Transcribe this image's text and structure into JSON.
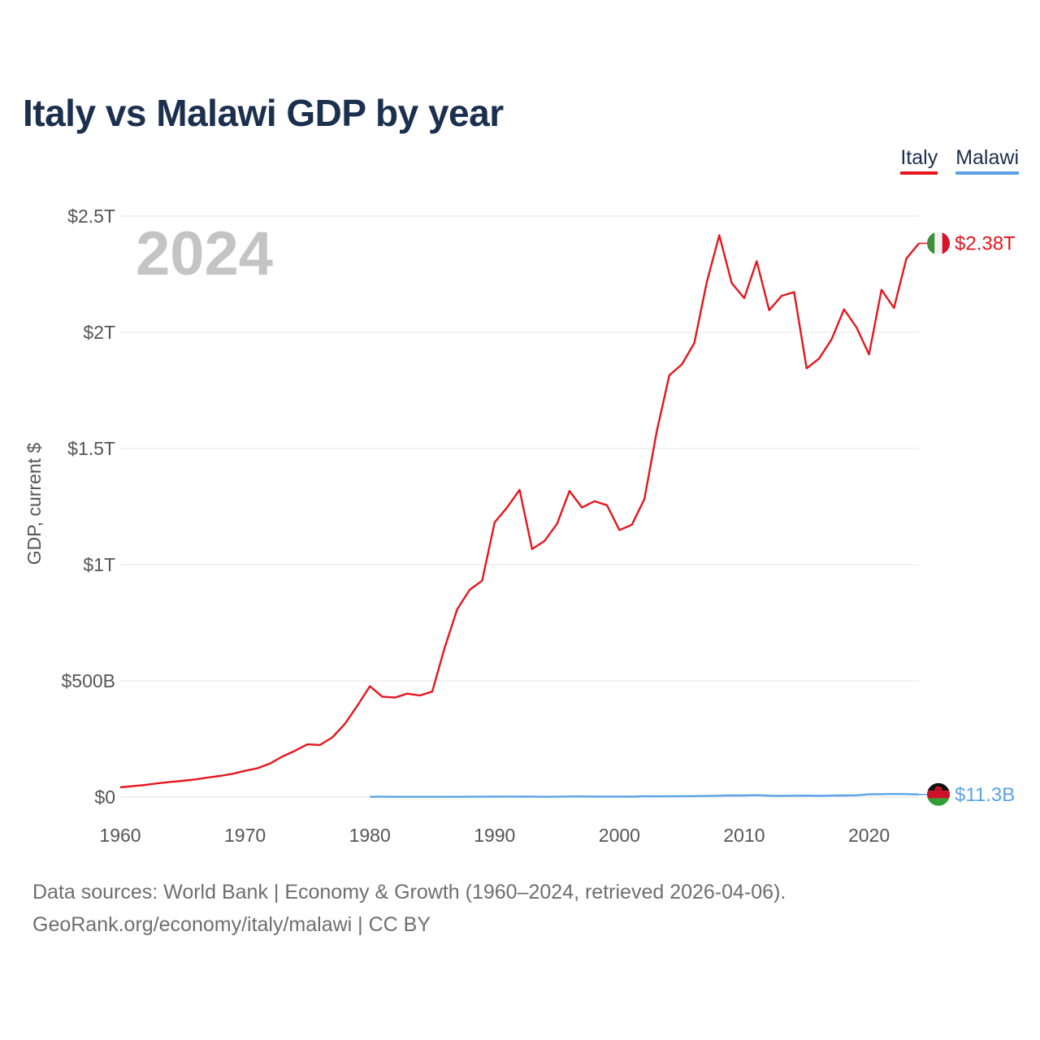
{
  "title": "Italy vs Malawi GDP by year",
  "legend": [
    {
      "name": "Italy",
      "color": "#e8141c"
    },
    {
      "name": "Malawi",
      "color": "#5ba3e6"
    }
  ],
  "footer": {
    "line1": "Data sources: World Bank | Economy & Growth (1960–2024, retrieved 2026-04-06).",
    "line2": "GeoRank.org/economy/italy/malawi | CC BY"
  },
  "chart_data": {
    "type": "line",
    "title": "Italy vs Malawi GDP by year",
    "year_label": "2024",
    "ylabel": "GDP, current $",
    "xlabel": "",
    "xlim": [
      1960,
      2024
    ],
    "ylim": [
      0,
      2500
    ],
    "value_unit": "billions of current US$",
    "x_ticks": [
      1960,
      1970,
      1980,
      1990,
      2000,
      2010,
      2020
    ],
    "x_tick_labels": [
      "1960",
      "1970",
      "1980",
      "1990",
      "2000",
      "2010",
      "2020"
    ],
    "y_ticks": [
      0,
      500,
      1000,
      1500,
      2000,
      2500
    ],
    "y_tick_labels": [
      "$0",
      "$500B",
      "$1T",
      "$1.5T",
      "$2T",
      "$2.5T"
    ],
    "grid": true,
    "legend_position": "top-right",
    "series": [
      {
        "name": "Italy",
        "color": "#e8141c",
        "end_label": "$2.38T",
        "x": [
          1960,
          1961,
          1962,
          1963,
          1964,
          1965,
          1966,
          1967,
          1968,
          1969,
          1970,
          1971,
          1972,
          1973,
          1974,
          1975,
          1976,
          1977,
          1978,
          1979,
          1980,
          1981,
          1982,
          1983,
          1984,
          1985,
          1986,
          1987,
          1988,
          1989,
          1990,
          1991,
          1992,
          1993,
          1994,
          1995,
          1996,
          1997,
          1998,
          1999,
          2000,
          2001,
          2002,
          2003,
          2004,
          2005,
          2006,
          2007,
          2008,
          2009,
          2010,
          2011,
          2012,
          2013,
          2014,
          2015,
          2016,
          2017,
          2018,
          2019,
          2020,
          2021,
          2022,
          2023,
          2024
        ],
        "values": [
          42,
          47,
          52,
          59,
          65,
          70,
          76,
          84,
          91,
          100,
          113,
          124,
          144,
          175,
          199,
          227,
          224,
          257,
          315,
          393,
          477,
          432,
          428,
          445,
          437,
          454,
          643,
          808,
          892,
          931,
          1182,
          1246,
          1322,
          1067,
          1102,
          1176,
          1317,
          1246,
          1273,
          1256,
          1149,
          1172,
          1282,
          1577,
          1815,
          1862,
          1953,
          2216,
          2418,
          2212,
          2147,
          2306,
          2095,
          2157,
          2173,
          1845,
          1887,
          1970,
          2099,
          2021,
          1905,
          2183,
          2105,
          2318,
          2383
        ]
      },
      {
        "name": "Malawi",
        "color": "#5ba3e6",
        "end_label": "$11.3B",
        "x": [
          1980,
          1981,
          1982,
          1983,
          1984,
          1985,
          1986,
          1987,
          1988,
          1989,
          1990,
          1991,
          1992,
          1993,
          1994,
          1995,
          1996,
          1997,
          1998,
          1999,
          2000,
          2001,
          2002,
          2003,
          2004,
          2005,
          2006,
          2007,
          2008,
          2009,
          2010,
          2011,
          2012,
          2013,
          2014,
          2015,
          2016,
          2017,
          2018,
          2019,
          2020,
          2021,
          2022,
          2023,
          2024
        ],
        "values": [
          1.2,
          1.3,
          1.2,
          1.2,
          1.2,
          1.1,
          1.2,
          1.1,
          1.3,
          1.5,
          1.9,
          2.2,
          1.8,
          2.1,
          1.2,
          1.4,
          2.3,
          2.7,
          1.8,
          1.8,
          1.7,
          1.7,
          3.5,
          3.2,
          3.5,
          3.7,
          4.3,
          4.9,
          6.0,
          6.9,
          7.0,
          8.0,
          6.0,
          5.4,
          6.0,
          6.4,
          5.4,
          6.3,
          7.0,
          7.7,
          12.0,
          12.6,
          13.2,
          13.0,
          11.3
        ]
      }
    ]
  }
}
